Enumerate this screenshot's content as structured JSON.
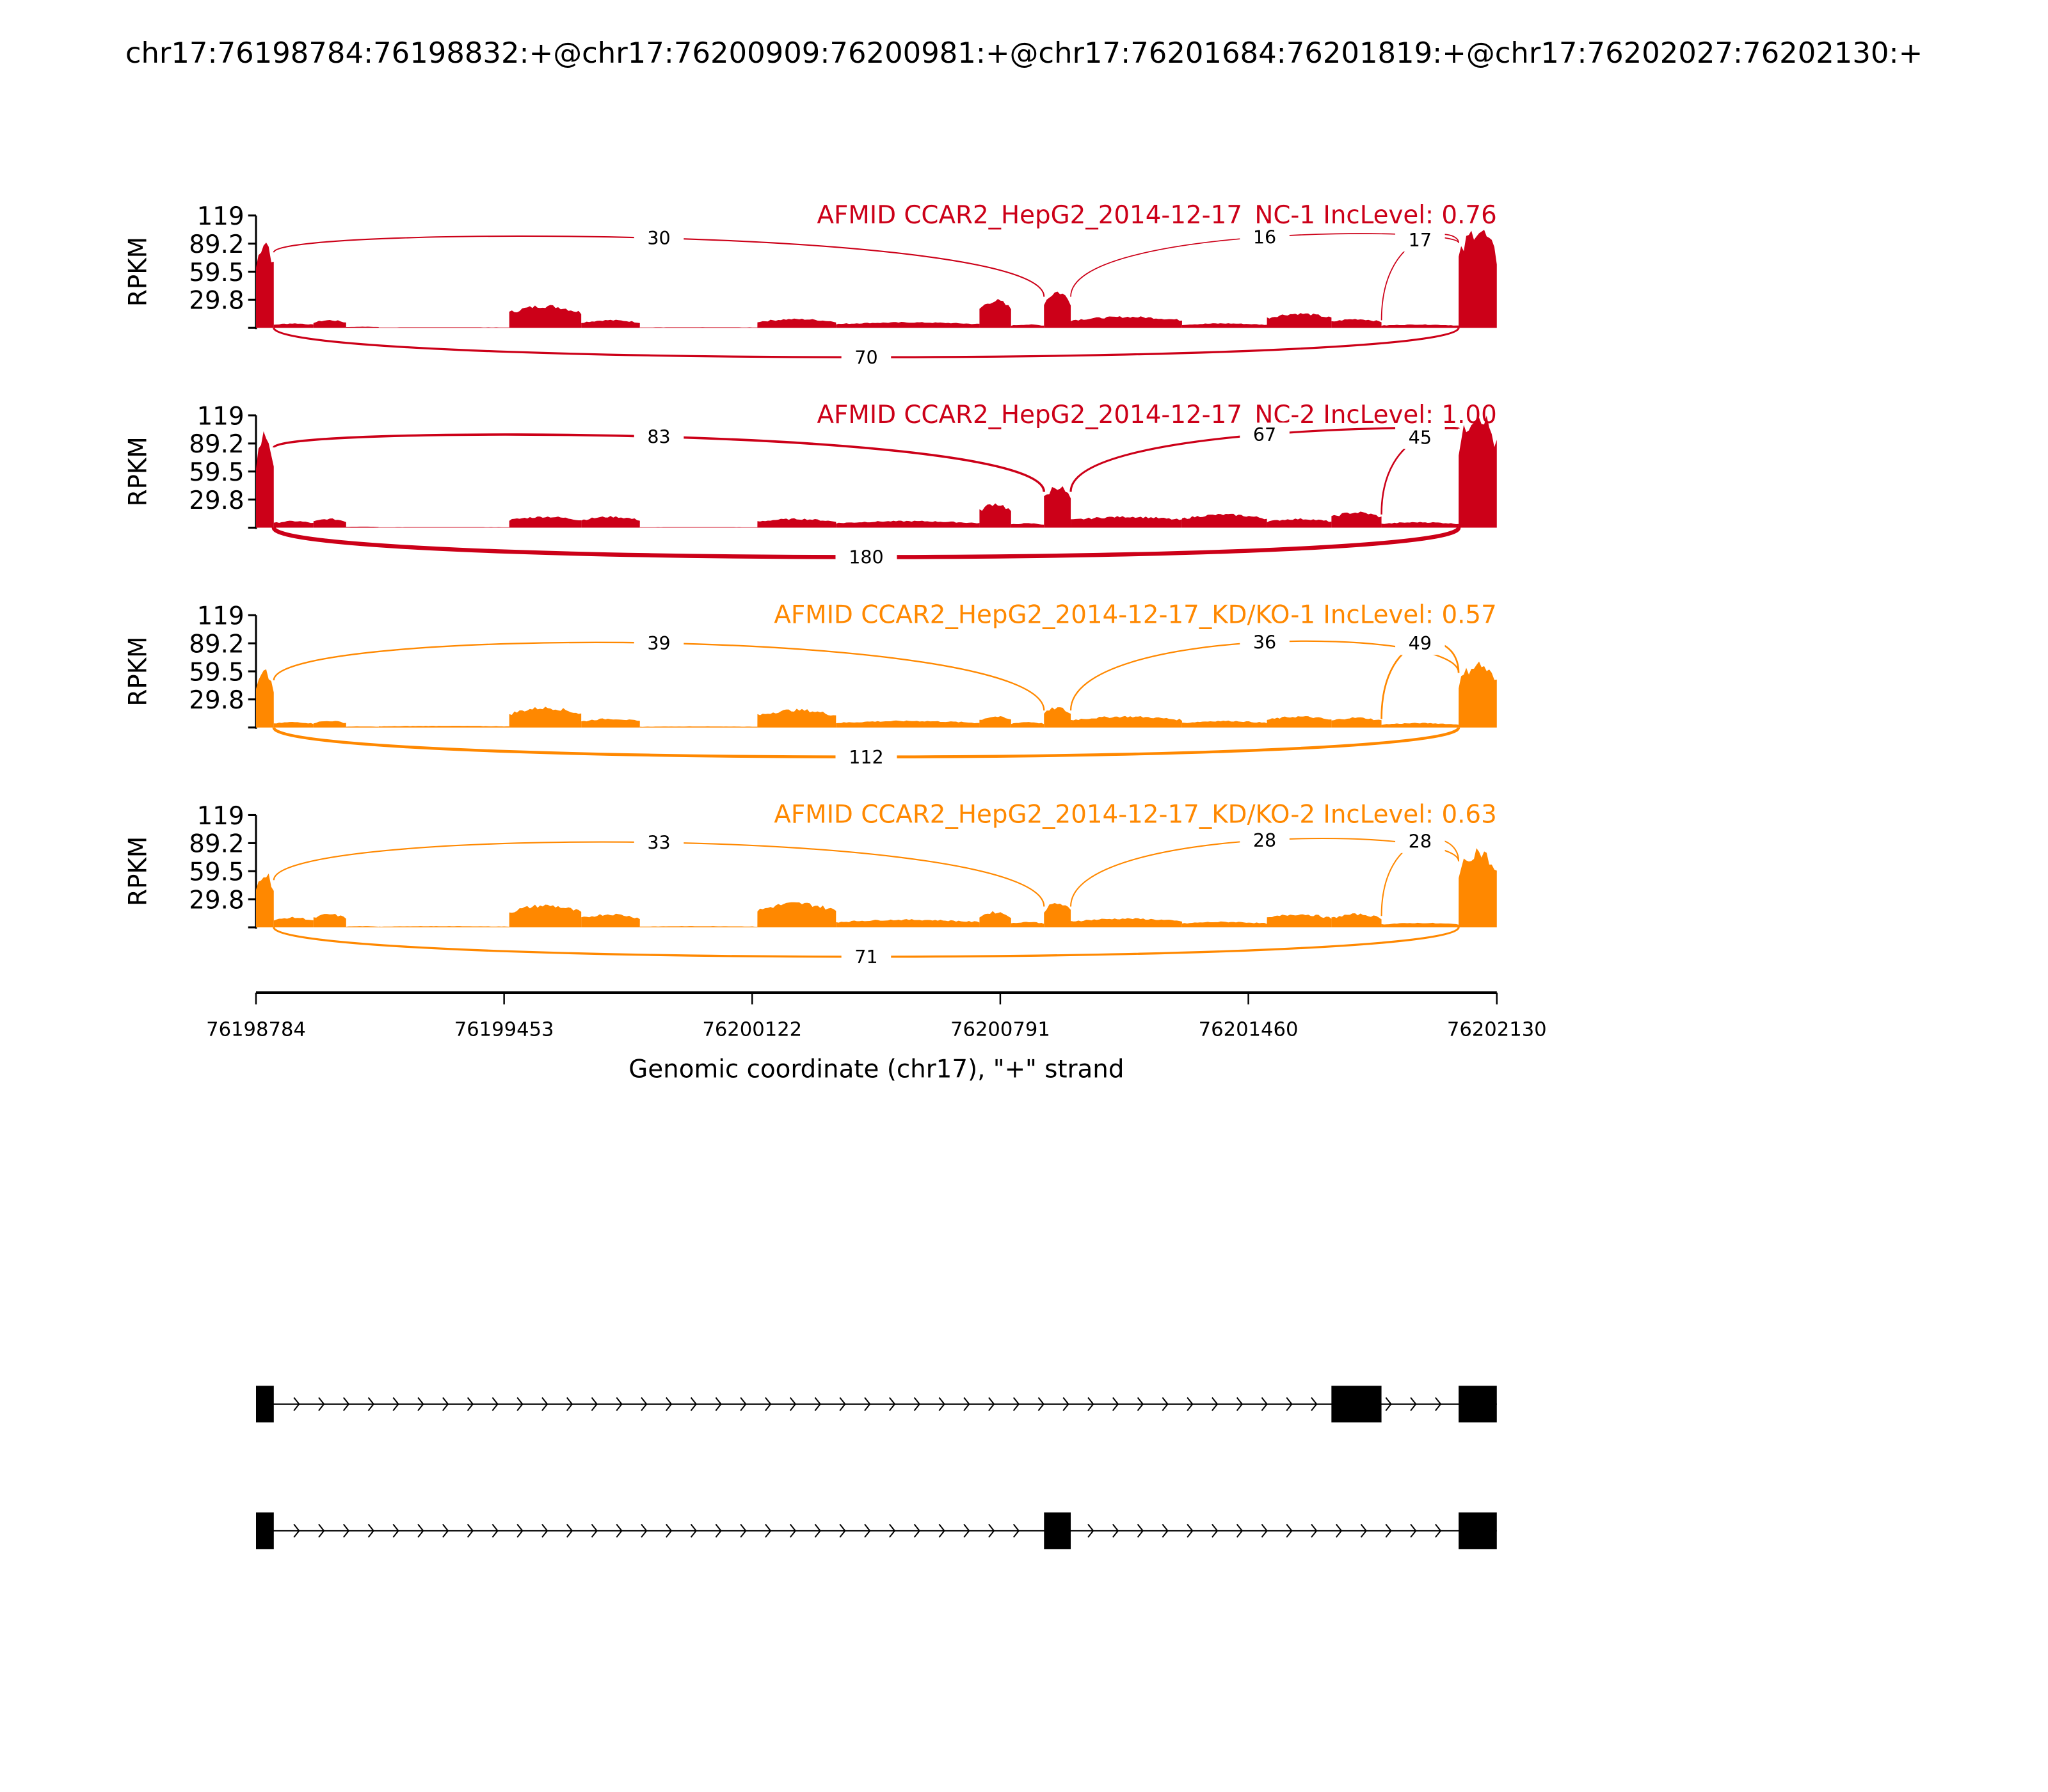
{
  "chart_data": {
    "type": "sashimi",
    "title": "chr17:76198784:76198832:+@chr17:76200909:76200981:+@chr17:76201684:76201819:+@chr17:76202027:76202130:+",
    "xlabel": "Genomic coordinate (chr17), \"+\" strand",
    "ylabel": "RPKM",
    "xlim": [
      76198784,
      76202130
    ],
    "ylim": [
      0,
      119
    ],
    "x_ticks": [
      "76198784",
      "76199453",
      "76200122",
      "76200791",
      "76201460",
      "76202130"
    ],
    "x_tick_values": [
      76198784,
      76199453,
      76200122,
      76200791,
      76201460,
      76202130
    ],
    "y_ticks": [
      "119",
      "89.2",
      "59.5",
      "29.8"
    ],
    "y_tick_values": [
      119,
      89.2,
      59.5,
      29.8
    ],
    "coverage_bin_edges": [
      76198784,
      76198832,
      76198939,
      76199027,
      76199115,
      76199467,
      76199661,
      76199819,
      76200136,
      76200348,
      76200735,
      76200820,
      76200909,
      76200981,
      76201281,
      76201510,
      76201684,
      76201819,
      76202027,
      76202130
    ],
    "colors": {
      "NC": "#cc0018",
      "KD": "#ff8800"
    },
    "samples": [
      {
        "label": "AFMID CCAR2_HepG2_2014-12-17_NC-1 IncLevel: 0.76",
        "group": "NC",
        "coverage": [
          80,
          4,
          7,
          1,
          0.5,
          20,
          7,
          0.5,
          8,
          5,
          25,
          3,
          33,
          10,
          4,
          13,
          8,
          3,
          90
        ],
        "junctions": [
          {
            "from": 76198832,
            "to": 76200909,
            "count": "30",
            "side": "top"
          },
          {
            "from": 76200981,
            "to": 76202027,
            "count": "16",
            "side": "top"
          },
          {
            "from": 76201819,
            "to": 76202027,
            "count": "17",
            "side": "top"
          },
          {
            "from": 76198832,
            "to": 76202027,
            "count": "70",
            "side": "bottom"
          }
        ]
      },
      {
        "label": "AFMID CCAR2_HepG2_2014-12-17_NC-2 IncLevel: 1.00",
        "group": "NC",
        "coverage": [
          85,
          6,
          8,
          1,
          0.5,
          10,
          10,
          0.5,
          8,
          6,
          22,
          4,
          38,
          10,
          12,
          8,
          14,
          5,
          105
        ],
        "junctions": [
          {
            "from": 76198832,
            "to": 76200909,
            "count": "83",
            "side": "top"
          },
          {
            "from": 76200981,
            "to": 76202027,
            "count": "67",
            "side": "top"
          },
          {
            "from": 76201819,
            "to": 76202027,
            "count": "45",
            "side": "top"
          },
          {
            "from": 76198832,
            "to": 76202027,
            "count": "180",
            "side": "bottom"
          }
        ]
      },
      {
        "label": "AFMID CCAR2_HepG2_2014-12-17_KD/KO-1 IncLevel: 0.57",
        "group": "KD",
        "coverage": [
          50,
          5,
          6,
          1,
          1.5,
          18,
          8,
          1,
          16,
          6,
          10,
          5,
          18,
          10,
          6,
          10,
          9,
          4,
          58
        ],
        "junctions": [
          {
            "from": 76198832,
            "to": 76200909,
            "count": "39",
            "side": "top"
          },
          {
            "from": 76200981,
            "to": 76202027,
            "count": "36",
            "side": "top"
          },
          {
            "from": 76201819,
            "to": 76202027,
            "count": "49",
            "side": "top"
          },
          {
            "from": 76198832,
            "to": 76202027,
            "count": "112",
            "side": "bottom"
          }
        ]
      },
      {
        "label": "AFMID CCAR2_HepG2_2014-12-17_KD/KO-2 IncLevel: 0.63",
        "group": "KD",
        "coverage": [
          50,
          9,
          12,
          1,
          1,
          20,
          12,
          1,
          22,
          7,
          14,
          5,
          22,
          8,
          5,
          12,
          12,
          4,
          70
        ],
        "junctions": [
          {
            "from": 76198832,
            "to": 76200909,
            "count": "33",
            "side": "top"
          },
          {
            "from": 76200981,
            "to": 76202027,
            "count": "28",
            "side": "top"
          },
          {
            "from": 76201819,
            "to": 76202027,
            "count": "28",
            "side": "top"
          },
          {
            "from": 76198832,
            "to": 76202027,
            "count": "71",
            "side": "bottom"
          }
        ]
      }
    ],
    "isoforms": [
      {
        "exons": [
          [
            76198784,
            76198832
          ],
          [
            76201684,
            76201819
          ],
          [
            76202027,
            76202130
          ]
        ]
      },
      {
        "exons": [
          [
            76198784,
            76198832
          ],
          [
            76200909,
            76200981
          ],
          [
            76202027,
            76202130
          ]
        ]
      }
    ]
  }
}
